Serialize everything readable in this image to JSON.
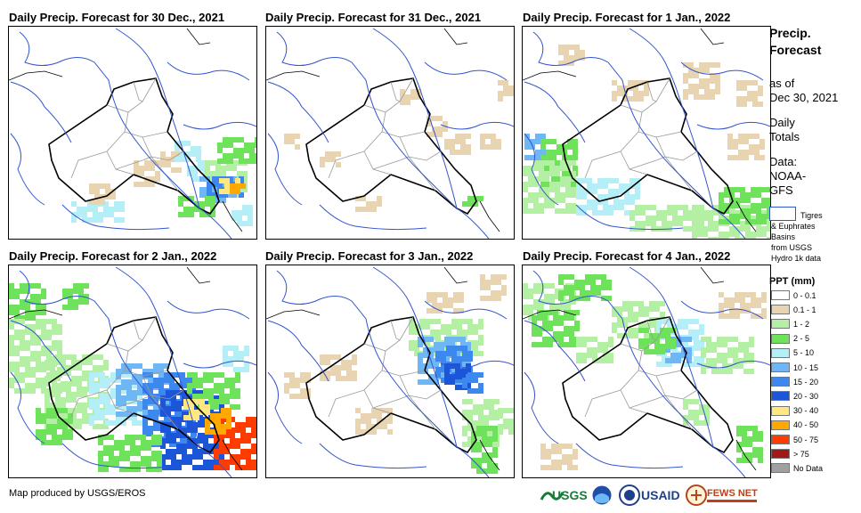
{
  "panels": [
    {
      "title": "Daily Precip. Forecast for 30 Dec., 2021"
    },
    {
      "title": "Daily Precip. Forecast for 31 Dec., 2021"
    },
    {
      "title": "Daily Precip. Forecast for 1 Jan., 2022"
    },
    {
      "title": "Daily Precip. Forecast for 2 Jan., 2022"
    },
    {
      "title": "Daily Precip. Forecast for 3 Jan., 2022"
    },
    {
      "title": "Daily Precip. Forecast for 4 Jan., 2022"
    }
  ],
  "sidebar": {
    "title_line1": "Precip.",
    "title_line2": "Forecast",
    "asof_line1": "as of",
    "asof_line2": "Dec 30, 2021",
    "daily_line1": "Daily",
    "daily_line2": "Totals",
    "data_line1": "Data:",
    "data_line2": "NOAA-",
    "data_line3": "GFS",
    "basin_line1": "Tigres",
    "basin_line2": "& Euphrates",
    "basin_line3": "Basins",
    "basin_line4": "from USGS",
    "basin_line5": "Hydro 1k data"
  },
  "legend": {
    "title": "PPT (mm)",
    "items": [
      {
        "label": "0 - 0.1",
        "color": "#ffffff"
      },
      {
        "label": "0.1 - 1",
        "color": "#e8d4b0"
      },
      {
        "label": "1 - 2",
        "color": "#b4f0a4"
      },
      {
        "label": "2 - 5",
        "color": "#6ee25a"
      },
      {
        "label": "5 - 10",
        "color": "#b4eef6"
      },
      {
        "label": "10 - 15",
        "color": "#6fb6f4"
      },
      {
        "label": "15 - 20",
        "color": "#3c88ee"
      },
      {
        "label": "20 - 30",
        "color": "#1c56d8"
      },
      {
        "label": "30 - 40",
        "color": "#ffe880"
      },
      {
        "label": "40 - 50",
        "color": "#ffa800"
      },
      {
        "label": "50 - 75",
        "color": "#ff3c00"
      },
      {
        "label": "> 75",
        "color": "#a01818"
      },
      {
        "label": "No Data",
        "color": "#a0a0a0"
      }
    ]
  },
  "footer": {
    "credit": "Map produced by USGS/EROS"
  },
  "logos": {
    "usgs": "USGS",
    "usaid": "USAID",
    "fews": "FEWS NET"
  }
}
